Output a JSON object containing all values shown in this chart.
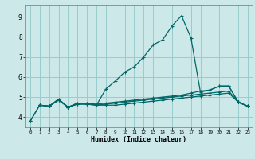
{
  "xlabel": "Humidex (Indice chaleur)",
  "bg_color": "#cce8e8",
  "grid_color": "#99cccc",
  "line_color": "#006666",
  "xlim": [
    -0.5,
    23.5
  ],
  "ylim": [
    3.5,
    9.6
  ],
  "xticks": [
    0,
    1,
    2,
    3,
    4,
    5,
    6,
    7,
    8,
    9,
    10,
    11,
    12,
    13,
    14,
    15,
    16,
    17,
    18,
    19,
    20,
    21,
    22,
    23
  ],
  "yticks": [
    4,
    5,
    6,
    7,
    8,
    9
  ],
  "series": [
    {
      "x": [
        0,
        1,
        2,
        3,
        4,
        5,
        6,
        7,
        8,
        9,
        10,
        11,
        12,
        13,
        14,
        15,
        16,
        17,
        18,
        19,
        20,
        21,
        22,
        23
      ],
      "y": [
        3.8,
        4.6,
        4.55,
        4.9,
        4.5,
        4.7,
        4.7,
        4.6,
        5.4,
        5.8,
        6.25,
        6.5,
        7.0,
        7.6,
        7.85,
        8.55,
        9.05,
        7.95,
        5.25,
        5.35,
        5.55,
        5.55,
        4.75,
        4.55
      ]
    },
    {
      "x": [
        0,
        1,
        2,
        3,
        4,
        5,
        6,
        7,
        8,
        9,
        10,
        11,
        12,
        13,
        14,
        15,
        16,
        17,
        18,
        19,
        20,
        21,
        22,
        23
      ],
      "y": [
        3.8,
        4.6,
        4.55,
        4.9,
        4.5,
        4.7,
        4.7,
        4.65,
        4.7,
        4.75,
        4.8,
        4.85,
        4.9,
        4.95,
        5.0,
        5.05,
        5.1,
        5.2,
        5.3,
        5.35,
        5.55,
        5.55,
        4.75,
        4.55
      ]
    },
    {
      "x": [
        1,
        2,
        3,
        4,
        5,
        6,
        7,
        8,
        9,
        10,
        11,
        12,
        13,
        14,
        15,
        16,
        17,
        18,
        19,
        20,
        21,
        22,
        23
      ],
      "y": [
        4.6,
        4.55,
        4.85,
        4.5,
        4.65,
        4.65,
        4.6,
        4.65,
        4.7,
        4.75,
        4.8,
        4.85,
        4.9,
        4.95,
        5.0,
        5.05,
        5.1,
        5.15,
        5.2,
        5.25,
        5.3,
        4.75,
        4.55
      ]
    },
    {
      "x": [
        1,
        2,
        3,
        4,
        5,
        6,
        7,
        8,
        9,
        10,
        11,
        12,
        13,
        14,
        15,
        16,
        17,
        18,
        19,
        20,
        21,
        22,
        23
      ],
      "y": [
        4.6,
        4.55,
        4.85,
        4.5,
        4.65,
        4.65,
        4.6,
        4.6,
        4.6,
        4.65,
        4.7,
        4.75,
        4.8,
        4.85,
        4.9,
        4.95,
        5.0,
        5.05,
        5.1,
        5.15,
        5.2,
        4.75,
        4.55
      ]
    }
  ]
}
